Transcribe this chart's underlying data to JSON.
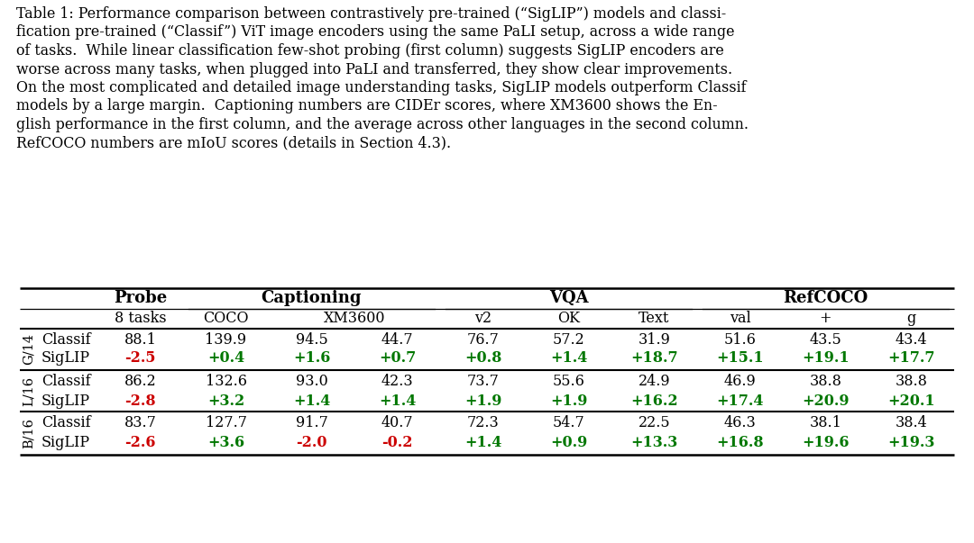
{
  "caption_lines": [
    "Table 1: Performance comparison between contrastively pre-trained (“SigLIP”) models and classi-",
    "fication pre-trained (“Classif”) ViT image encoders using the same PaLI setup, across a wide range",
    "of tasks.  While linear classification few-shot probing (first column) suggests SigLIP encoders are",
    "worse across many tasks, when plugged into PaLI and transferred, they show clear improvements.",
    "On the most complicated and detailed image understanding tasks, SigLIP models outperform Classif",
    "models by a large margin.  Captioning numbers are CIDEr scores, where XM3600 shows the En-",
    "glish performance in the first column, and the average across other languages in the second column.",
    "RefCOCO numbers are mIoU scores (details in Section 4.3)."
  ],
  "group_labels": [
    "G/14",
    "L/16",
    "B/16"
  ],
  "data": {
    "G/14": {
      "Classif": [
        "88.1",
        "139.9",
        "94.5",
        "44.7",
        "76.7",
        "57.2",
        "31.9",
        "51.6",
        "43.5",
        "43.4"
      ],
      "SigLIP": [
        "-2.5",
        "+0.4",
        "+1.6",
        "+0.7",
        "+0.8",
        "+1.4",
        "+18.7",
        "+15.1",
        "+19.1",
        "+17.7"
      ]
    },
    "L/16": {
      "Classif": [
        "86.2",
        "132.6",
        "93.0",
        "42.3",
        "73.7",
        "55.6",
        "24.9",
        "46.9",
        "38.8",
        "38.8"
      ],
      "SigLIP": [
        "-2.8",
        "+3.2",
        "+1.4",
        "+1.4",
        "+1.9",
        "+1.9",
        "+16.2",
        "+17.4",
        "+20.9",
        "+20.1"
      ]
    },
    "B/16": {
      "Classif": [
        "83.7",
        "127.7",
        "91.7",
        "40.7",
        "72.3",
        "54.7",
        "22.5",
        "46.3",
        "38.1",
        "38.4"
      ],
      "SigLIP": [
        "-2.6",
        "+3.6",
        "-2.0",
        "-0.2",
        "+1.4",
        "+0.9",
        "+13.3",
        "+16.8",
        "+19.6",
        "+19.3"
      ]
    }
  },
  "bg_color": "#ffffff",
  "text_color": "#000000",
  "red_color": "#cc0000",
  "green_color": "#007700"
}
